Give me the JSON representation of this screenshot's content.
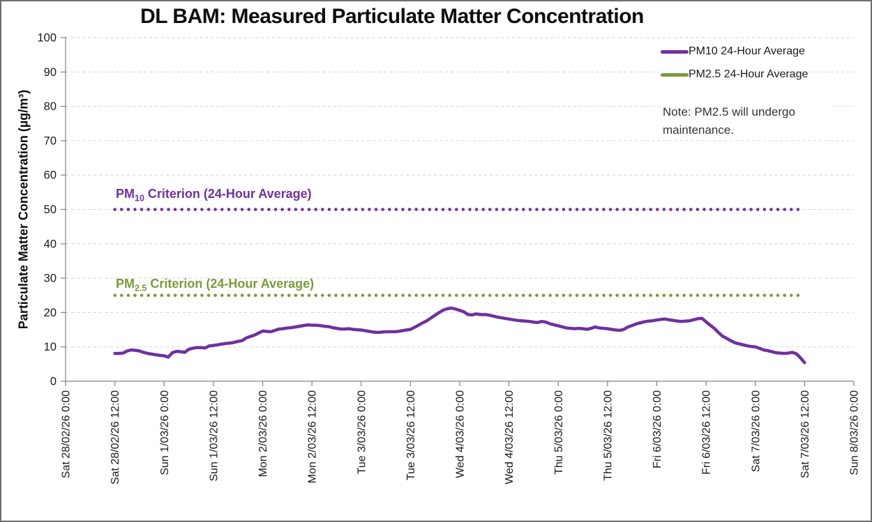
{
  "chart_data": {
    "type": "line",
    "title": "DL BAM: Measured Particulate Matter Concentration",
    "xlabel": "",
    "ylabel": "Particulate Matter Concentration (µg/m³)",
    "ylim": [
      0,
      100
    ],
    "y_tick_step": 10,
    "grid": "horizontal-dashed",
    "legend_position": "top-right",
    "x_axis_span_hours": 192,
    "x_tick_interval_hours": 12,
    "x_tick_labels": [
      "Sat 28/02/26 0:00",
      "Sat 28/02/26 12:00",
      "Sun 1/03/26 0:00",
      "Sun 1/03/26 12:00",
      "Mon 2/03/26 0:00",
      "Mon 2/03/26 12:00",
      "Tue 3/03/26 0:00",
      "Tue 3/03/26 12:00",
      "Wed 4/03/26 0:00",
      "Wed 4/03/26 12:00",
      "Thu 5/03/26 0:00",
      "Thu 5/03/26 12:00",
      "Fri 6/03/26 0:00",
      "Fri 6/03/26 12:00",
      "Sat 7/03/26 0:00",
      "Sat 7/03/26 12:00",
      "Sun 8/03/26 0:00"
    ],
    "series": [
      {
        "name": "PM10 24-Hour Average",
        "color": "#7030A0",
        "x_start_hours": 12,
        "x_step_hours": 1,
        "values": [
          8.1,
          8.1,
          8.2,
          8.8,
          9.1,
          9.0,
          8.8,
          8.4,
          8.1,
          7.9,
          7.7,
          7.5,
          7.4,
          7.0,
          8.3,
          8.7,
          8.6,
          8.4,
          9.3,
          9.6,
          9.8,
          9.8,
          9.7,
          10.3,
          10.4,
          10.6,
          10.8,
          11.0,
          11.1,
          11.3,
          11.6,
          11.8,
          12.6,
          13.0,
          13.4,
          14.0,
          14.6,
          14.5,
          14.4,
          14.8,
          15.2,
          15.3,
          15.5,
          15.6,
          15.8,
          16.0,
          16.2,
          16.4,
          16.3,
          16.3,
          16.2,
          16.0,
          15.9,
          15.6,
          15.4,
          15.2,
          15.2,
          15.3,
          15.1,
          15.0,
          14.9,
          14.7,
          14.5,
          14.3,
          14.2,
          14.3,
          14.4,
          14.4,
          14.4,
          14.5,
          14.7,
          14.9,
          15.1,
          15.7,
          16.3,
          17.0,
          17.6,
          18.4,
          19.2,
          20.0,
          20.7,
          21.1,
          21.3,
          21.0,
          20.6,
          20.2,
          19.4,
          19.3,
          19.6,
          19.4,
          19.4,
          19.3,
          19.0,
          18.7,
          18.5,
          18.3,
          18.1,
          17.9,
          17.7,
          17.6,
          17.5,
          17.4,
          17.2,
          17.1,
          17.4,
          17.2,
          16.7,
          16.4,
          16.1,
          15.8,
          15.5,
          15.4,
          15.3,
          15.4,
          15.3,
          15.1,
          15.4,
          15.8,
          15.5,
          15.4,
          15.3,
          15.1,
          14.9,
          14.8,
          15.1,
          15.8,
          16.2,
          16.7,
          17.0,
          17.3,
          17.5,
          17.6,
          17.8,
          18.0,
          18.1,
          17.9,
          17.7,
          17.5,
          17.4,
          17.5,
          17.6,
          17.9,
          18.2,
          18.3,
          17.3,
          16.3,
          15.4,
          14.2,
          13.1,
          12.5,
          11.8,
          11.2,
          10.9,
          10.6,
          10.3,
          10.1,
          10.0,
          9.6,
          9.1,
          8.9,
          8.6,
          8.3,
          8.2,
          8.1,
          8.2,
          8.4,
          8.0,
          6.8,
          5.4
        ]
      },
      {
        "name": "PM2.5 24-Hour Average",
        "color": "#7A9A3C",
        "x_start_hours": 12,
        "x_step_hours": 1,
        "values": []
      }
    ],
    "reference_lines": [
      {
        "label_prefix": "PM",
        "label_sub": "10",
        "label_rest": " Criterion (24-Hour Average)",
        "value": 50,
        "color": "#7030A0",
        "style": "dotted",
        "span_hours": [
          12,
          180
        ]
      },
      {
        "label_prefix": "PM",
        "label_sub": "2.5",
        "label_rest": " Criterion (24-Hour Average)",
        "value": 25,
        "color": "#7A9A3C",
        "style": "dotted",
        "span_hours": [
          12,
          180
        ]
      }
    ],
    "annotation": "Note: PM2.5 will undergo maintenance."
  }
}
